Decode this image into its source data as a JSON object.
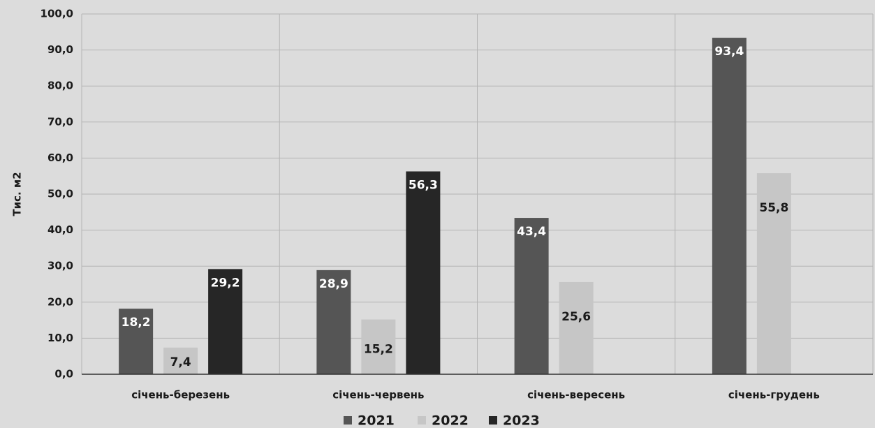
{
  "chart_data": {
    "type": "bar",
    "title": "",
    "xlabel": "",
    "ylabel": "Тис. м2",
    "ylim": [
      0,
      100
    ],
    "yticks": [
      "0,0",
      "10,0",
      "20,0",
      "30,0",
      "40,0",
      "50,0",
      "60,0",
      "70,0",
      "80,0",
      "90,0",
      "100,0"
    ],
    "categories": [
      "січень-березень",
      "січень-червень",
      "січень-вересень",
      "січень-грудень"
    ],
    "series": [
      {
        "name": "2021",
        "color": "#555555",
        "label_color": "#ffffff",
        "values": [
          18.2,
          28.9,
          43.4,
          93.4
        ],
        "labels": [
          "18,2",
          "28,9",
          "43,4",
          "93,4"
        ]
      },
      {
        "name": "2022",
        "color": "#c6c6c6",
        "label_color": "#1a1a1a",
        "values": [
          7.4,
          15.2,
          25.6,
          55.8
        ],
        "labels": [
          "7,4",
          "15,2",
          "25,6",
          "55,8"
        ]
      },
      {
        "name": "2023",
        "color": "#262626",
        "label_color": "#ffffff",
        "values": [
          29.2,
          56.3,
          null,
          null
        ],
        "labels": [
          "29,2",
          "56,3",
          "",
          ""
        ]
      }
    ],
    "grid": true,
    "legend_position": "bottom"
  }
}
